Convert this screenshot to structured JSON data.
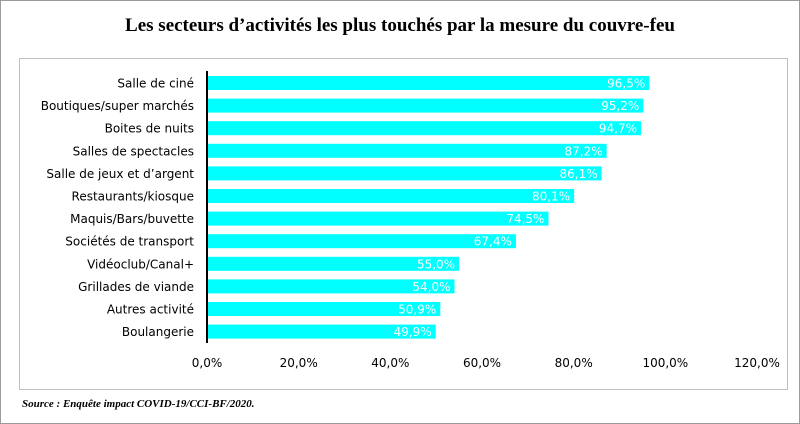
{
  "header": {
    "title": "Les secteurs d’activités les plus touchés par la mesure du couvre-feu"
  },
  "footer": {
    "source": "Source : Enquête impact COVID-19/CCI-BF/2020."
  },
  "colors": {
    "bar": "#00FFFF",
    "label": "#FFFFFF",
    "axis": "#000000"
  },
  "chart_data": {
    "type": "bar",
    "orientation": "horizontal",
    "categories": [
      "Salle de ciné",
      "Boutiques/super marchés",
      "Boites de nuits",
      "Salles de spectacles",
      "Salle de jeux et d’argent",
      "Restaurants/kiosque",
      "Maquis/Bars/buvette",
      "Sociétés de transport",
      "Vidéoclub/Canal+",
      "Grillades de viande",
      "Autres activité",
      "Boulangerie"
    ],
    "values": [
      96.5,
      95.2,
      94.7,
      87.2,
      86.1,
      80.1,
      74.5,
      67.4,
      55.0,
      54.0,
      50.9,
      49.9
    ],
    "value_labels": [
      "96,5%",
      "95,2%",
      "94,7%",
      "87,2%",
      "86,1%",
      "80,1%",
      "74,5%",
      "67,4%",
      "55,0%",
      "54,0%",
      "50,9%",
      "49,9%"
    ],
    "xticks": [
      "0,0%",
      "20,0%",
      "40,0%",
      "60,0%",
      "80,0%",
      "100,0%",
      "120,0%"
    ],
    "xlim": [
      0,
      120
    ],
    "grid": false,
    "legend": "none"
  }
}
